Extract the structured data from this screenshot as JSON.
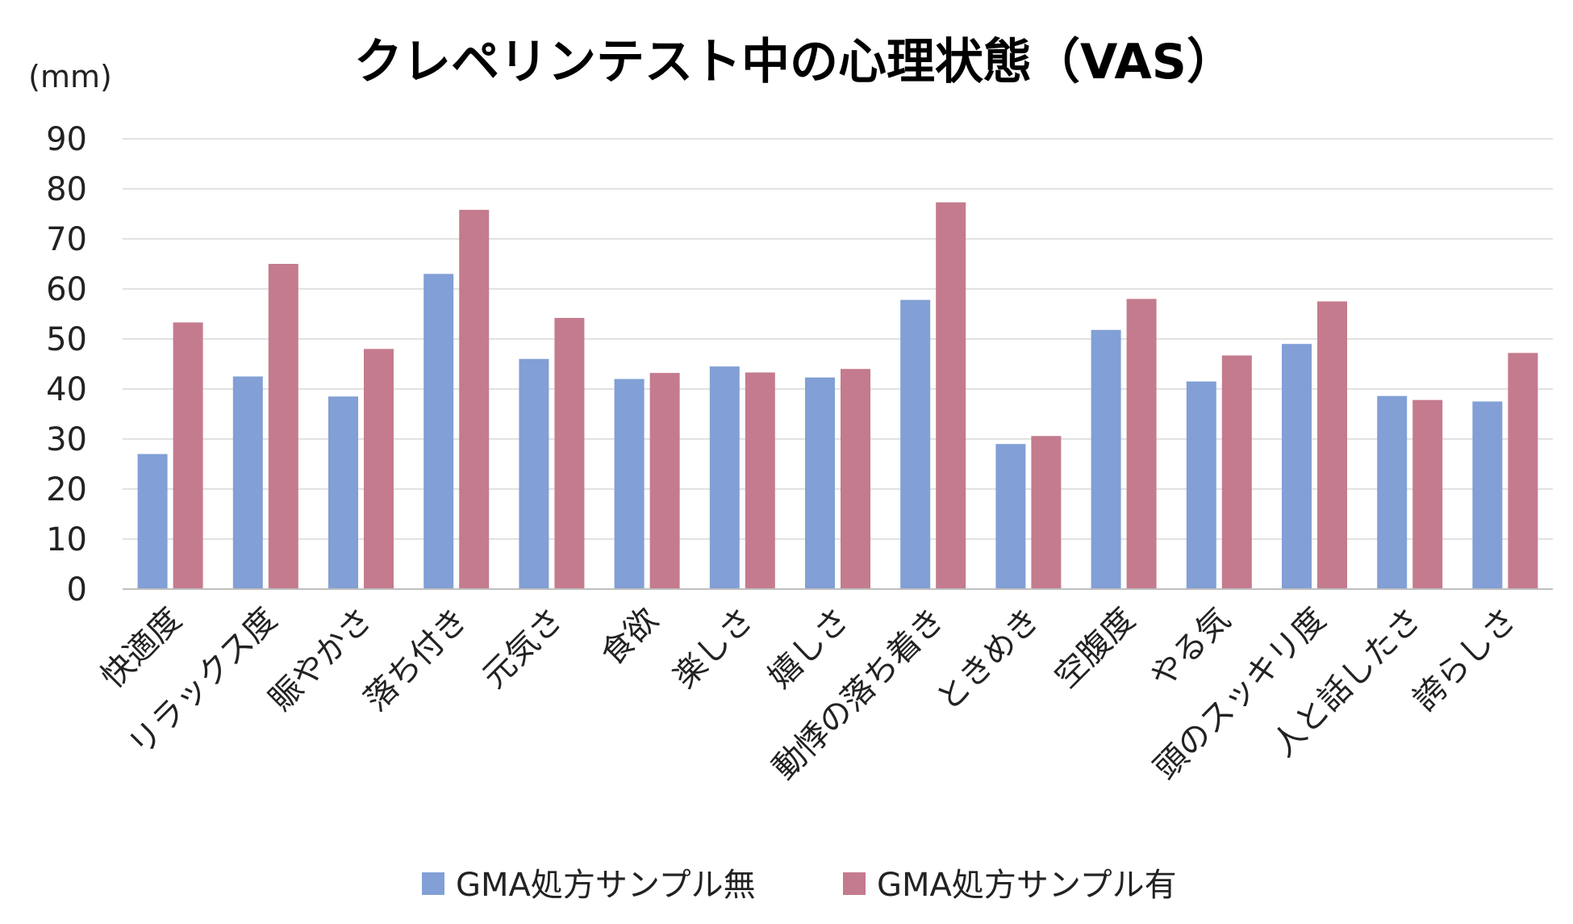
{
  "chart_data": {
    "type": "bar",
    "title": "クレペリンテスト中の心理状態（VAS）",
    "ylabel": "(mm)",
    "xlabel": "",
    "ylim": [
      0,
      90
    ],
    "yticks": [
      0,
      10,
      20,
      30,
      40,
      50,
      60,
      70,
      80,
      90
    ],
    "grid": true,
    "legend_position": "bottom",
    "categories": [
      "快適度",
      "リラックス度",
      "賑やかさ",
      "落ち付き",
      "元気さ",
      "食欲",
      "楽しさ",
      "嬉しさ",
      "動悸の落ち着き",
      "ときめき",
      "空腹度",
      "やる気",
      "頭のスッキリ度",
      "人と話したさ",
      "誇らしさ"
    ],
    "series": [
      {
        "name": "GMA処方サンプル無",
        "color": "#829fd6",
        "values": [
          27,
          42.5,
          38.5,
          63,
          46,
          42,
          44.5,
          42.3,
          57.8,
          29,
          51.8,
          41.5,
          49,
          38.6,
          37.5
        ]
      },
      {
        "name": "GMA処方サンプル有",
        "color": "#c47b8e",
        "values": [
          53.3,
          65,
          48,
          75.8,
          54.2,
          43.2,
          43.3,
          44,
          77.3,
          30.6,
          58,
          46.7,
          57.5,
          37.8,
          47.2
        ]
      }
    ]
  }
}
